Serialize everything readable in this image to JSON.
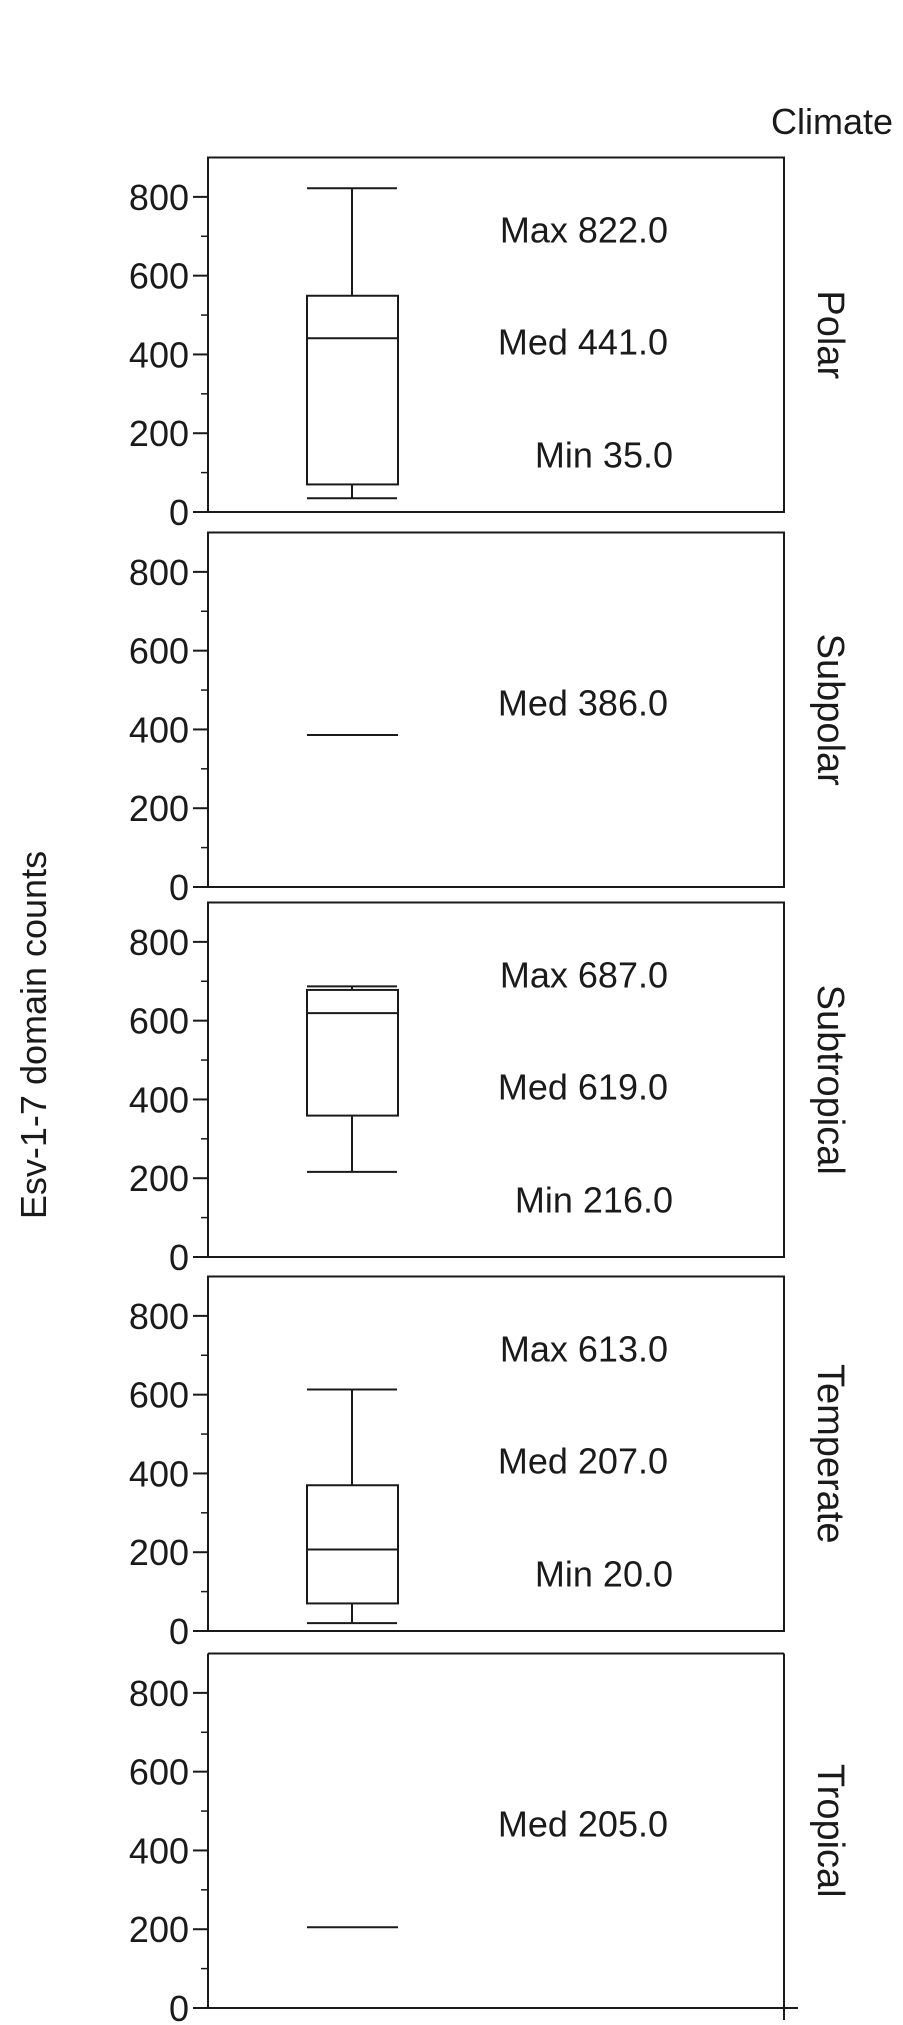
{
  "chart_data": {
    "type": "box",
    "title": "",
    "ylabel": "Esv-1-7 domain counts",
    "facet_title": "Climate",
    "ylim": [
      0,
      900
    ],
    "yticks": [
      0,
      200,
      400,
      600,
      800
    ],
    "ytick_labels": [
      "0",
      "200",
      "400",
      "600",
      "800"
    ],
    "minor_tick_step": 100,
    "panels": [
      {
        "name": "Polar",
        "min": 35,
        "q1": 70,
        "median": 441,
        "q3": 549,
        "max": 822,
        "labels": {
          "max": "Max 822.0",
          "median": "Med 441.0",
          "min": "Min 35.0"
        }
      },
      {
        "name": "Subpolar",
        "median": 386,
        "labels": {
          "median": "Med 386.0"
        }
      },
      {
        "name": "Subtropical",
        "min": 216,
        "q1": 359,
        "median": 619,
        "q3": 678,
        "max": 687,
        "labels": {
          "max": "Max 687.0",
          "median": "Med 619.0",
          "min": "Min 216.0"
        }
      },
      {
        "name": "Temperate",
        "min": 20,
        "q1": 70,
        "median": 207,
        "q3": 370,
        "max": 613,
        "labels": {
          "max": "Max 613.0",
          "median": "Med 207.0",
          "min": "Min 20.0"
        }
      },
      {
        "name": "Tropical",
        "median": 205,
        "labels": {
          "median": "Med 205.0"
        }
      }
    ],
    "colors": {
      "stroke": "#1a1a1a",
      "background": "#ffffff"
    }
  }
}
